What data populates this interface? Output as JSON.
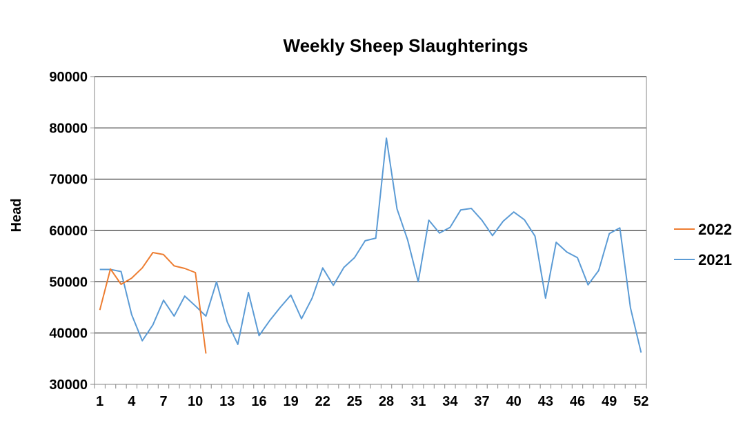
{
  "chart_data": {
    "type": "line",
    "title": "Weekly Sheep Slaughterings",
    "xlabel": "",
    "ylabel": "Head",
    "ylim": [
      30000,
      90000
    ],
    "yticks": [
      30000,
      40000,
      50000,
      60000,
      70000,
      80000,
      90000
    ],
    "xlim": [
      1,
      52
    ],
    "xticks": [
      1,
      4,
      7,
      10,
      13,
      16,
      19,
      22,
      25,
      28,
      31,
      34,
      37,
      40,
      43,
      46,
      49,
      52
    ],
    "grid": true,
    "legend_position": "right",
    "series": [
      {
        "name": "2022",
        "color": "#ED7D31",
        "x": [
          1,
          2,
          3,
          4,
          5,
          6,
          7,
          8,
          9,
          10,
          11
        ],
        "values": [
          44500,
          52500,
          49500,
          50700,
          52700,
          55700,
          55300,
          53100,
          52600,
          51800,
          36000
        ]
      },
      {
        "name": "2021",
        "color": "#5B9BD5",
        "x": [
          1,
          2,
          3,
          4,
          5,
          6,
          7,
          8,
          9,
          10,
          11,
          12,
          13,
          14,
          15,
          16,
          17,
          18,
          19,
          20,
          21,
          22,
          23,
          24,
          25,
          26,
          27,
          28,
          29,
          30,
          31,
          32,
          33,
          34,
          35,
          36,
          37,
          38,
          39,
          40,
          41,
          42,
          43,
          44,
          45,
          46,
          47,
          48,
          49,
          50,
          51,
          52
        ],
        "values": [
          52400,
          52400,
          52000,
          43600,
          38500,
          41600,
          46400,
          43300,
          47200,
          45300,
          43300,
          50000,
          42200,
          37800,
          47900,
          39500,
          42400,
          45000,
          47400,
          42800,
          46800,
          52700,
          49300,
          52800,
          54700,
          58000,
          58500,
          78000,
          64200,
          58200,
          50000,
          62000,
          59500,
          60600,
          64000,
          64300,
          62000,
          59000,
          61800,
          63600,
          62100,
          58900,
          46800,
          57700,
          55800,
          54700,
          49400,
          52200,
          59400,
          60500,
          44900,
          36200
        ]
      }
    ]
  }
}
